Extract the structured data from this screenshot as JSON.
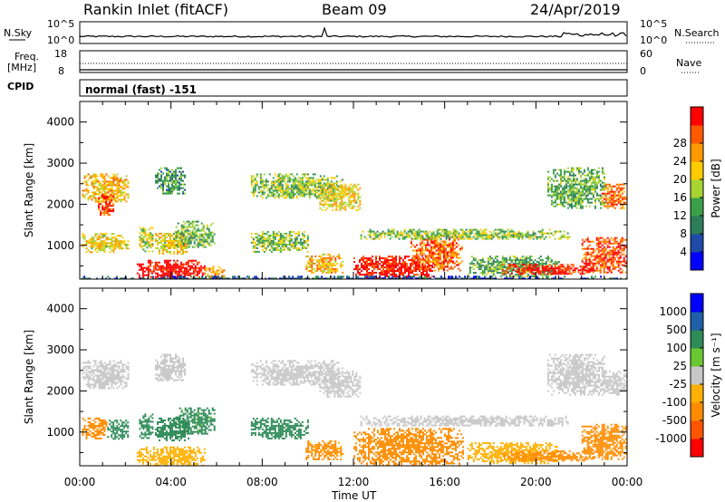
{
  "header": {
    "station": "Rankin Inlet (fitACF)",
    "beam": "Beam 09",
    "date": "24/Apr/2019"
  },
  "strip_labels": {
    "nsky": "N.Sky",
    "nsky_top": "10^5",
    "nsky_bottom": "10^0",
    "nsearch": "N.Search",
    "nsearch_top": "10^5",
    "nsearch_bottom": "10^0",
    "freq_label_1": "Freq.",
    "freq_label_2": "[MHz]",
    "freq_top": "18",
    "freq_bottom": "8",
    "nave": "Nave",
    "nave_top": "60",
    "nave_bottom": "0",
    "cpid": "CPID",
    "cpid_text": "normal (fast) -151"
  },
  "colors": {
    "power_scale": [
      "#0000ff",
      "#1f4aa8",
      "#2e7d5a",
      "#3aa04a",
      "#a8d432",
      "#ffcc00",
      "#ff9900",
      "#ff5a00",
      "#ff0000"
    ],
    "velocity_scale": [
      "#ff0000",
      "#ff5500",
      "#ff8c00",
      "#ffb000",
      "#c8c8c8",
      "#6ac832",
      "#2e8b57",
      "#1f5fa8",
      "#0000ff"
    ]
  },
  "chart_data": [
    {
      "type": "heatmap",
      "name": "power",
      "title": "",
      "xlabel": "Time UT",
      "ylabel": "Slant Range [km]",
      "x_ticks": [
        "00:00",
        "04:00",
        "08:00",
        "12:00",
        "16:00",
        "20:00",
        "00:00"
      ],
      "y_ticks": [
        "1000",
        "2000",
        "3000",
        "4000"
      ],
      "y_tick_values": [
        1000,
        2000,
        3000,
        4000
      ],
      "xlim_hours": [
        0,
        24
      ],
      "ylim": [
        180,
        4500
      ],
      "colorbar_label": "Power [dB]",
      "colorbar_ticks": [
        "4",
        "8",
        "12",
        "16",
        "20",
        "24",
        "28"
      ],
      "colorbar_range": [
        0,
        30
      ],
      "regions": [
        {
          "t0": 0.1,
          "t1": 2.1,
          "r0": 2050,
          "r1": 2750,
          "v": 20
        },
        {
          "t0": 0.8,
          "t1": 1.5,
          "r0": 1750,
          "r1": 2250,
          "v": 26
        },
        {
          "t0": 0.1,
          "t1": 2.1,
          "r0": 850,
          "r1": 1300,
          "v": 18
        },
        {
          "t0": 2.6,
          "t1": 3.2,
          "r0": 850,
          "r1": 1450,
          "v": 16
        },
        {
          "t0": 3.3,
          "t1": 4.8,
          "r0": 800,
          "r1": 1350,
          "v": 18
        },
        {
          "t0": 4.2,
          "t1": 5.9,
          "r0": 950,
          "r1": 1600,
          "v": 12
        },
        {
          "t0": 2.5,
          "t1": 5.5,
          "r0": 180,
          "r1": 650,
          "v": 29
        },
        {
          "t0": 5.5,
          "t1": 6.3,
          "r0": 180,
          "r1": 500,
          "v": 22
        },
        {
          "t0": 3.3,
          "t1": 4.6,
          "r0": 2250,
          "r1": 2900,
          "v": 10
        },
        {
          "t0": 7.5,
          "t1": 11.5,
          "r0": 2150,
          "r1": 2750,
          "v": 14
        },
        {
          "t0": 10.5,
          "t1": 12.3,
          "r0": 1850,
          "r1": 2500,
          "v": 18
        },
        {
          "t0": 7.5,
          "t1": 10.0,
          "r0": 850,
          "r1": 1350,
          "v": 14
        },
        {
          "t0": 9.9,
          "t1": 11.5,
          "r0": 350,
          "r1": 800,
          "v": 20
        },
        {
          "t0": 12.0,
          "t1": 15.5,
          "r0": 180,
          "r1": 750,
          "v": 29
        },
        {
          "t0": 14.5,
          "t1": 16.8,
          "r0": 400,
          "r1": 1250,
          "v": 24
        },
        {
          "t0": 12.3,
          "t1": 21.5,
          "r0": 1150,
          "r1": 1400,
          "v": 14
        },
        {
          "t0": 17.0,
          "t1": 21.0,
          "r0": 250,
          "r1": 750,
          "v": 12
        },
        {
          "t0": 18.5,
          "t1": 22.5,
          "r0": 300,
          "r1": 550,
          "v": 28
        },
        {
          "t0": 22.0,
          "t1": 24.0,
          "r0": 350,
          "r1": 1200,
          "v": 26
        },
        {
          "t0": 22.8,
          "t1": 24.0,
          "r0": 1900,
          "r1": 2500,
          "v": 24
        },
        {
          "t0": 20.5,
          "t1": 23.0,
          "r0": 1900,
          "r1": 2900,
          "v": 12
        },
        {
          "t0": 0.0,
          "t1": 24.0,
          "r0": 180,
          "r1": 260,
          "v": 6
        }
      ]
    },
    {
      "type": "heatmap",
      "name": "velocity",
      "title": "",
      "xlabel": "Time UT",
      "ylabel": "Slant Range [km]",
      "x_ticks": [
        "00:00",
        "04:00",
        "08:00",
        "12:00",
        "16:00",
        "20:00",
        "00:00"
      ],
      "y_ticks": [
        "1000",
        "2000",
        "3000",
        "4000"
      ],
      "y_tick_values": [
        1000,
        2000,
        3000,
        4000
      ],
      "xlim_hours": [
        0,
        24
      ],
      "ylim": [
        180,
        4500
      ],
      "colorbar_label": "Velocity [m s⁻¹]",
      "colorbar_ticks": [
        "-1000",
        "-500",
        "-100",
        "-25",
        "25",
        "100",
        "500",
        "1000"
      ],
      "regions": [
        {
          "t0": 0.1,
          "t1": 2.1,
          "r0": 2050,
          "r1": 2750,
          "v": 0
        },
        {
          "t0": 0.1,
          "t1": 1.2,
          "r0": 850,
          "r1": 1350,
          "v": -300
        },
        {
          "t0": 1.2,
          "t1": 2.1,
          "r0": 850,
          "r1": 1300,
          "v": 300
        },
        {
          "t0": 2.6,
          "t1": 3.2,
          "r0": 850,
          "r1": 1450,
          "v": 200
        },
        {
          "t0": 3.3,
          "t1": 4.8,
          "r0": 800,
          "r1": 1350,
          "v": 300
        },
        {
          "t0": 4.2,
          "t1": 5.9,
          "r0": 950,
          "r1": 1600,
          "v": 150
        },
        {
          "t0": 2.5,
          "t1": 5.5,
          "r0": 180,
          "r1": 650,
          "v": -60
        },
        {
          "t0": 3.3,
          "t1": 4.6,
          "r0": 2250,
          "r1": 2900,
          "v": 0
        },
        {
          "t0": 7.5,
          "t1": 11.5,
          "r0": 2150,
          "r1": 2750,
          "v": 0
        },
        {
          "t0": 10.5,
          "t1": 12.3,
          "r0": 1850,
          "r1": 2500,
          "v": 0
        },
        {
          "t0": 7.5,
          "t1": 10.0,
          "r0": 850,
          "r1": 1350,
          "v": 250
        },
        {
          "t0": 9.9,
          "t1": 11.5,
          "r0": 350,
          "r1": 800,
          "v": -150
        },
        {
          "t0": 12.0,
          "t1": 16.8,
          "r0": 180,
          "r1": 1100,
          "v": -250
        },
        {
          "t0": 12.3,
          "t1": 21.5,
          "r0": 1150,
          "r1": 1400,
          "v": 0
        },
        {
          "t0": 17.0,
          "t1": 21.0,
          "r0": 250,
          "r1": 750,
          "v": -60
        },
        {
          "t0": 18.5,
          "t1": 22.5,
          "r0": 300,
          "r1": 550,
          "v": -250
        },
        {
          "t0": 22.0,
          "t1": 24.0,
          "r0": 350,
          "r1": 1200,
          "v": -300
        },
        {
          "t0": 22.8,
          "t1": 24.0,
          "r0": 1900,
          "r1": 2500,
          "v": 0
        },
        {
          "t0": 20.5,
          "t1": 23.0,
          "r0": 1900,
          "r1": 2900,
          "v": 0
        }
      ]
    }
  ]
}
